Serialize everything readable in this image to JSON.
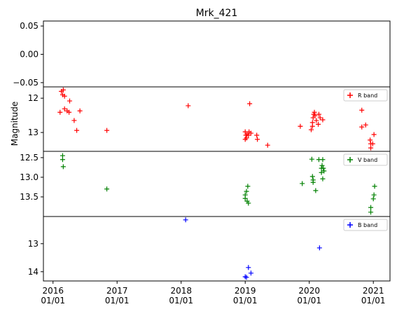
{
  "chart_data": [
    {
      "type": "scatter",
      "title": "Mrk_421",
      "xlim": [
        2015.85,
        2021.26
      ],
      "ylim": [
        -0.0575,
        0.0588
      ],
      "yticks": [
        0.05,
        {
          "value": 0,
          "label": "0.00"
        },
        {
          "value": -0.05,
          "label": "−0.05"
        }
      ],
      "series": []
    },
    {
      "type": "scatter",
      "ylabel": "Magnitude",
      "xlim": [
        2015.85,
        2021.26
      ],
      "ylim": [
        13.55,
        11.67
      ],
      "yticks": [
        12,
        13
      ],
      "legend": "upper right",
      "series": [
        {
          "name": "R band",
          "color": "#ff0000",
          "x": [
            2016.13,
            2016.16,
            2016.15,
            2016.18,
            2016.11,
            2016.18,
            2016.22,
            2016.26,
            2016.25,
            2016.33,
            2016.37,
            2016.42,
            2016.84,
            2018.11,
            2019.0,
            2019.01,
            2019.02,
            2019.0,
            2019.03,
            2019.06,
            2019.07,
            2019.09,
            2019.05,
            2019.18,
            2019.19,
            2019.35,
            2019.86,
            2020.03,
            2020.05,
            2020.05,
            2020.06,
            2020.07,
            2020.08,
            2020.09,
            2020.11,
            2020.14,
            2020.15,
            2020.17,
            2020.21,
            2020.82,
            2020.82,
            2020.88,
            2020.95,
            2020.96,
            2020.96,
            2020.99,
            2021.01
          ],
          "values": [
            11.8,
            11.76,
            11.9,
            11.94,
            12.41,
            12.31,
            12.37,
            12.08,
            12.41,
            12.65,
            12.94,
            12.37,
            12.94,
            12.22,
            12.98,
            13.08,
            13.16,
            13.2,
            13.04,
            12.98,
            12.16,
            13.02,
            13.08,
            13.08,
            13.2,
            13.37,
            12.82,
            12.92,
            12.82,
            12.71,
            12.57,
            12.47,
            12.41,
            12.51,
            12.65,
            12.76,
            12.47,
            12.57,
            12.63,
            12.35,
            12.84,
            12.78,
            13.22,
            13.33,
            13.45,
            13.33,
            13.06
          ]
        }
      ]
    },
    {
      "type": "scatter",
      "xlim": [
        2015.85,
        2021.26
      ],
      "ylim": [
        14.0,
        12.34
      ],
      "yticks": [
        12.5,
        {
          "value": 13,
          "label": "13.0"
        },
        13.5
      ],
      "legend": "upper right",
      "series": [
        {
          "name": "V band",
          "color": "#008000",
          "x": [
            2016.15,
            2016.15,
            2016.16,
            2016.84,
            2019.0,
            2019.02,
            2019.04,
            2019.0,
            2019.03,
            2019.05,
            2019.89,
            2020.04,
            2020.05,
            2020.06,
            2020.06,
            2020.1,
            2020.15,
            2020.19,
            2020.19,
            2020.2,
            2020.21,
            2020.22,
            2020.23,
            2020.21,
            2020.96,
            2020.96,
            2021.0,
            2021.01,
            2021.02
          ],
          "values": [
            12.45,
            12.55,
            12.73,
            13.3,
            13.45,
            13.36,
            13.23,
            13.54,
            13.61,
            13.66,
            13.16,
            12.54,
            12.98,
            13.07,
            13.13,
            13.34,
            12.55,
            12.77,
            12.88,
            12.7,
            12.55,
            12.77,
            12.84,
            13.04,
            13.77,
            13.89,
            13.55,
            13.45,
            13.23
          ]
        }
      ]
    },
    {
      "type": "scatter",
      "xlim": [
        2015.85,
        2021.26
      ],
      "ylim": [
        14.33,
        12.03
      ],
      "yticks": [
        13,
        14
      ],
      "legend": "upper right",
      "xticks": [
        {
          "value": 2016,
          "label": "2016\n01/01"
        },
        {
          "value": 2017,
          "label": "2017\n01/01"
        },
        {
          "value": 2018,
          "label": "2018\n01/01"
        },
        {
          "value": 2019,
          "label": "2019\n01/01"
        },
        {
          "value": 2020,
          "label": "2020\n01/01"
        },
        {
          "value": 2021,
          "label": "2021\n01/01"
        }
      ],
      "series": [
        {
          "name": "B band",
          "color": "#0000ff",
          "x": [
            2018.07,
            2019.0,
            2019.02,
            2019.05,
            2019.09,
            2020.16
          ],
          "values": [
            12.15,
            14.18,
            14.2,
            13.85,
            14.05,
            13.15
          ]
        }
      ]
    }
  ]
}
